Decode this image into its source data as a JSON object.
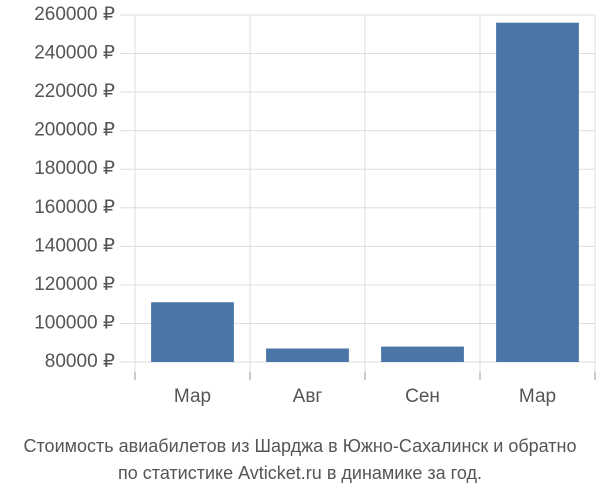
{
  "chart_data": {
    "type": "bar",
    "categories": [
      "Мар",
      "Авг",
      "Сен",
      "Мар"
    ],
    "values": [
      111000,
      87000,
      88000,
      256000
    ],
    "color": "#4a76a8",
    "ylim": [
      80000,
      260000
    ],
    "yticks": [
      {
        "value": 80000,
        "label": "80000 ₽"
      },
      {
        "value": 100000,
        "label": "100000 ₽"
      },
      {
        "value": 120000,
        "label": "120000 ₽"
      },
      {
        "value": 140000,
        "label": "140000 ₽"
      },
      {
        "value": 160000,
        "label": "160000 ₽"
      },
      {
        "value": 180000,
        "label": "180000 ₽"
      },
      {
        "value": 200000,
        "label": "200000 ₽"
      },
      {
        "value": 220000,
        "label": "220000 ₽"
      },
      {
        "value": 240000,
        "label": "240000 ₽"
      },
      {
        "value": 260000,
        "label": "260000 ₽"
      }
    ],
    "grid": true,
    "caption": [
      "Стоимость авиабилетов из Шарджа в Южно-Сахалинск и обратно",
      "по статистике Avticket.ru в динамике за год."
    ]
  }
}
